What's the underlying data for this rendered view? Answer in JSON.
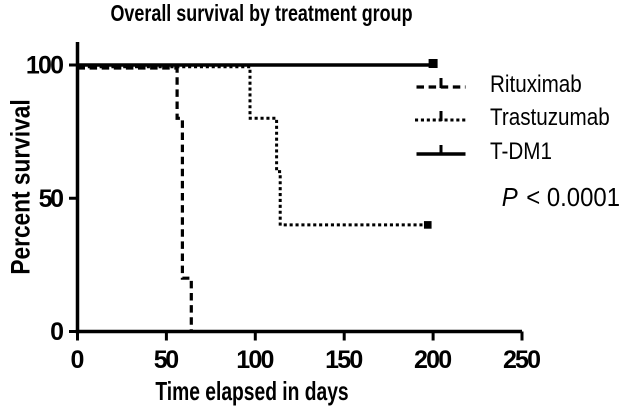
{
  "figure": {
    "background": "#ffffff",
    "foreground": "#000000"
  },
  "chart_data": {
    "type": "line",
    "chart_style": "kaplan-meier-step",
    "title": "Overall survival by treatment group",
    "xlabel": "Time elapsed in days",
    "ylabel": "Percent survival",
    "xlim": [
      0,
      250
    ],
    "ylim": [
      0,
      100
    ],
    "xticks": [
      0,
      50,
      100,
      150,
      200,
      250
    ],
    "yticks": [
      0,
      50,
      100
    ],
    "grid": false,
    "legend_position": "right",
    "series": [
      {
        "name": "Rituximab",
        "line_style": "dashed",
        "color": "#000000",
        "end_marker": false,
        "points": [
          [
            0,
            100
          ],
          [
            56,
            100
          ],
          [
            56,
            80
          ],
          [
            59,
            80
          ],
          [
            59,
            20
          ],
          [
            64,
            20
          ],
          [
            64,
            0
          ]
        ]
      },
      {
        "name": "Trastuzumab",
        "line_style": "dotted",
        "color": "#000000",
        "end_marker": true,
        "points": [
          [
            0,
            100
          ],
          [
            97,
            100
          ],
          [
            97,
            80
          ],
          [
            112,
            80
          ],
          [
            112,
            60
          ],
          [
            114,
            60
          ],
          [
            114,
            40
          ],
          [
            197,
            40
          ]
        ]
      },
      {
        "name": "T-DM1",
        "line_style": "solid",
        "color": "#000000",
        "end_marker": true,
        "points": [
          [
            0,
            100
          ],
          [
            200,
            100
          ]
        ]
      }
    ],
    "annotation": {
      "italic_part": "P",
      "rest": " < 0.0001"
    }
  }
}
